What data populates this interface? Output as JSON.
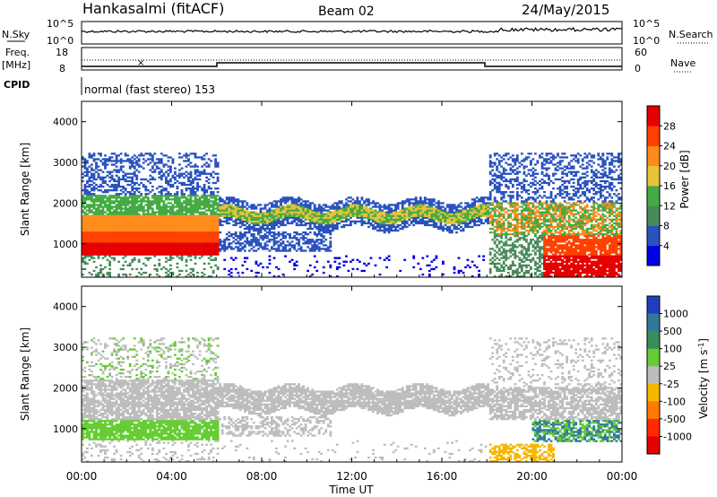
{
  "header": {
    "station": "Hankasalmi (fitACF)",
    "beam": "Beam 02",
    "date": "24/May/2015"
  },
  "top_panels": {
    "nsky_label": "N.Sky",
    "nsky_ticks": [
      "10^5",
      "10^0"
    ],
    "nsearch_label": "N.Search",
    "nsearch_ticks": [
      "10^5",
      "10^0"
    ],
    "freq_label_1": "Freq.",
    "freq_label_2": "[MHz]",
    "freq_ticks": [
      "18",
      "8"
    ],
    "nave_label": "Nave",
    "nave_ticks": [
      "60",
      "0"
    ],
    "cpid_label": "CPID",
    "cpid_text": "normal (fast stereo) 153"
  },
  "chart_data": [
    {
      "type": "heatmap",
      "name": "power-panel",
      "ylabel": "Slant Range [km]",
      "ylim": [
        180,
        4500
      ],
      "yticks": [
        "1000",
        "2000",
        "3000",
        "4000"
      ],
      "xlim_hours": [
        0,
        24
      ],
      "colorbar": {
        "label": "Power [dB]",
        "ticks": [
          "4",
          "8",
          "12",
          "16",
          "20",
          "24",
          "28"
        ],
        "colors": [
          "#0000e6",
          "#2a52be",
          "#4a8a5a",
          "#44aa44",
          "#e8c23a",
          "#ff8c1a",
          "#ff4000",
          "#e60000"
        ]
      }
    },
    {
      "type": "heatmap",
      "name": "velocity-panel",
      "ylabel": "Slant Range [km]",
      "ylim": [
        180,
        4500
      ],
      "yticks": [
        "1000",
        "2000",
        "3000",
        "4000"
      ],
      "xlim_hours": [
        0,
        24
      ],
      "colorbar": {
        "label": "Velocity [m s-1]",
        "ticks": [
          "1000",
          "500",
          "100",
          "25",
          "-25",
          "-100",
          "-500",
          "-1000"
        ],
        "colors": [
          "#1f3fbf",
          "#2d7a9a",
          "#3a8c5a",
          "#66cc33",
          "#bdbdbd",
          "#f5b700",
          "#ff7a00",
          "#ff2a00",
          "#e60000"
        ]
      }
    }
  ],
  "xaxis": {
    "label": "Time UT",
    "ticks": [
      "00:00",
      "04:00",
      "08:00",
      "12:00",
      "16:00",
      "20:00",
      "00:00"
    ]
  },
  "colors": {
    "power": [
      "#0000e6",
      "#2a52be",
      "#4a8a5a",
      "#44aa44",
      "#e8c23a",
      "#ff8c1a",
      "#ff4000",
      "#e60000"
    ],
    "velocity_gray": "#bdbdbd",
    "velocity_green": "#66cc33",
    "velocity_blue": "#2d7a9a",
    "velocity_orange": "#f5b700"
  }
}
